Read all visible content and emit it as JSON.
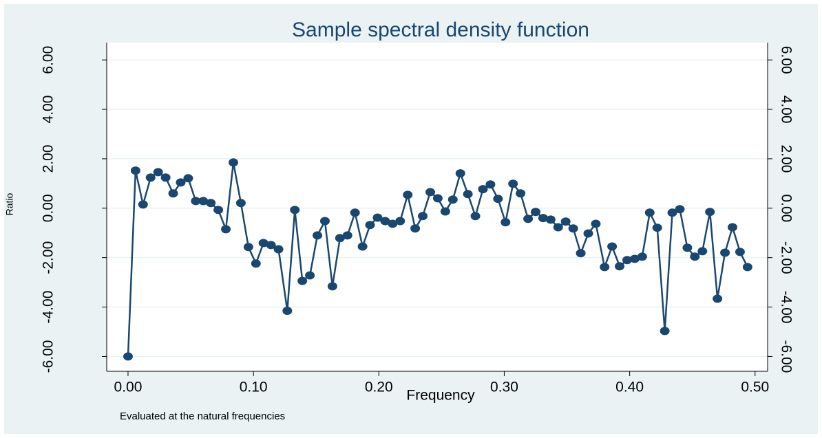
{
  "chart_data": {
    "type": "line",
    "title": "Sample spectral density function",
    "xlabel": "Frequency",
    "ylabel": "Ratio",
    "note": "Evaluated at the natural frequencies",
    "color": "#1a476f",
    "grid": true,
    "markers": true,
    "x": [
      0,
      0.006,
      0.012,
      0.018,
      0.024,
      0.03,
      0.036,
      0.042,
      0.048,
      0.054,
      0.06,
      0.066,
      0.072,
      0.078,
      0.084,
      0.09,
      0.096,
      0.102,
      0.108,
      0.114,
      0.12,
      0.127,
      0.133,
      0.139,
      0.145,
      0.151,
      0.157,
      0.163,
      0.169,
      0.175,
      0.181,
      0.187,
      0.193,
      0.199,
      0.205,
      0.211,
      0.217,
      0.223,
      0.229,
      0.235,
      0.241,
      0.247,
      0.253,
      0.259,
      0.265,
      0.271,
      0.277,
      0.283,
      0.289,
      0.295,
      0.301,
      0.307,
      0.313,
      0.319,
      0.325,
      0.331,
      0.337,
      0.343,
      0.349,
      0.355,
      0.361,
      0.367,
      0.373,
      0.38,
      0.386,
      0.392,
      0.398,
      0.404,
      0.41,
      0.416,
      0.422,
      0.428,
      0.434,
      0.44,
      0.446,
      0.452,
      0.458,
      0.464,
      0.47,
      0.476,
      0.482,
      0.488,
      0.494
    ],
    "values": [
      -6.0,
      1.52,
      0.15,
      1.24,
      1.46,
      1.24,
      0.6,
      1.04,
      1.21,
      0.29,
      0.29,
      0.21,
      -0.07,
      -0.85,
      1.85,
      0.21,
      -1.57,
      -2.24,
      -1.41,
      -1.49,
      -1.66,
      -4.15,
      -0.07,
      -2.94,
      -2.72,
      -1.1,
      -0.52,
      -3.16,
      -1.21,
      -1.1,
      -0.18,
      -1.55,
      -0.68,
      -0.38,
      -0.52,
      -0.63,
      -0.52,
      0.54,
      -0.82,
      -0.32,
      0.65,
      0.4,
      -0.13,
      0.35,
      1.41,
      0.57,
      -0.32,
      0.77,
      0.96,
      0.38,
      -0.57,
      0.99,
      0.6,
      -0.43,
      -0.15,
      -0.4,
      -0.46,
      -0.77,
      -0.54,
      -0.82,
      -1.82,
      -1.02,
      -0.63,
      -2.38,
      -1.55,
      -2.35,
      -2.1,
      -2.05,
      -1.96,
      -0.18,
      -0.79,
      -4.97,
      -0.18,
      -0.04,
      -1.6,
      -1.96,
      -1.74,
      -0.15,
      -3.66,
      -1.8,
      -0.77,
      -1.77,
      -2.38
    ],
    "xlim": [
      -0.017,
      0.51
    ],
    "ylim": [
      -6.6,
      6.7
    ],
    "y2lim": [
      -6.6,
      6.7
    ],
    "xticks": [
      {
        "value": 0,
        "label": "0.00"
      },
      {
        "value": 0.1,
        "label": "0.10"
      },
      {
        "value": 0.2,
        "label": "0.20"
      },
      {
        "value": 0.3,
        "label": "0.30"
      },
      {
        "value": 0.4,
        "label": "0.40"
      },
      {
        "value": 0.5,
        "label": "0.50"
      }
    ],
    "yticks": [
      {
        "value": -6,
        "label": "-6.00"
      },
      {
        "value": -4,
        "label": "-4.00"
      },
      {
        "value": -2,
        "label": "-2.00"
      },
      {
        "value": 0,
        "label": "0.00"
      },
      {
        "value": 2,
        "label": "2.00"
      },
      {
        "value": 4,
        "label": "4.00"
      },
      {
        "value": 6,
        "label": "6.00"
      }
    ],
    "y2ticks": [
      {
        "value": -6,
        "label": "-6.00"
      },
      {
        "value": -4,
        "label": "-4.00"
      },
      {
        "value": -2,
        "label": "-2.00"
      },
      {
        "value": 0,
        "label": "0.00"
      },
      {
        "value": 2,
        "label": "2.00"
      },
      {
        "value": 4,
        "label": "4.00"
      },
      {
        "value": 6,
        "label": "6.00"
      }
    ]
  }
}
